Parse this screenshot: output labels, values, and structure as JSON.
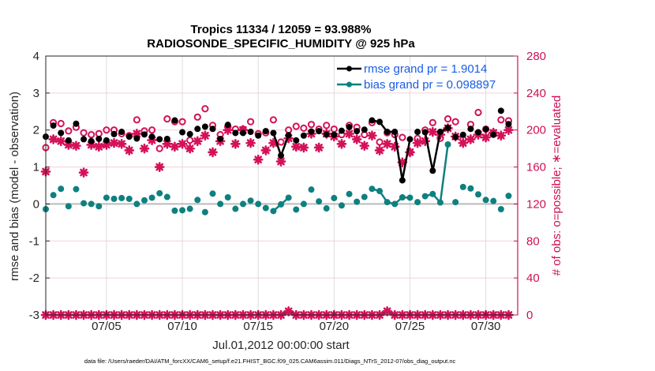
{
  "chart_data": {
    "type": "line",
    "title": "Tropics 11334 / 12059 = 93.988%",
    "subtitle": "RADIOSONDE_SPECIFIC_HUMIDITY @ 925 hPa",
    "xlabel": "Jul.01,2012 00:00:00 start",
    "ylabel_left": "rmse and bias (model - observation)",
    "ylabel_right": "# of obs: o=possible; ∗=evaluated",
    "footnote": "data file: /Users/raeder/DAI/ATM_forcXX/CAM6_setup/f.e21.FHIST_BGC.f09_025.CAM6assim.011/Diags_NTrS_2012-07/obs_diag_output.nc",
    "x_unit": "days since Jul.01,2012 00:00:00",
    "xlim": [
      0,
      31.1
    ],
    "ylim_left": [
      -3,
      4
    ],
    "ylim_right": [
      0,
      280
    ],
    "xticks": [
      {
        "day": 4,
        "label": "07/05"
      },
      {
        "day": 9,
        "label": "07/10"
      },
      {
        "day": 14,
        "label": "07/15"
      },
      {
        "day": 19,
        "label": "07/20"
      },
      {
        "day": 24,
        "label": "07/25"
      },
      {
        "day": 29,
        "label": "07/30"
      }
    ],
    "yticks_left": [
      "-3",
      "-2",
      "-1",
      "0",
      "1",
      "2",
      "3",
      "4"
    ],
    "yticks_right": [
      "0",
      "40",
      "80",
      "120",
      "160",
      "200",
      "240",
      "280"
    ],
    "grid": true,
    "legend_position": "top-right",
    "colors": {
      "rmse": "#000000",
      "bias": "#0e8080",
      "counts": "#d41159",
      "legend_text": "#1a5ce6",
      "zero_line": "#bbbbbb"
    },
    "x_days": [
      0,
      0.5,
      1,
      1.5,
      2,
      2.5,
      3,
      3.5,
      4,
      4.5,
      5,
      5.5,
      6,
      6.5,
      7,
      7.5,
      8,
      8.5,
      9,
      9.5,
      10,
      10.5,
      11,
      11.5,
      12,
      12.5,
      13,
      13.5,
      14,
      14.5,
      15,
      15.5,
      16,
      16.5,
      17,
      17.5,
      18,
      18.5,
      19,
      19.5,
      20,
      20.5,
      21,
      21.5,
      22,
      22.5,
      23,
      23.5,
      24,
      24.5,
      25,
      25.5,
      26,
      26.5,
      27,
      27.5,
      28,
      28.5,
      29,
      29.5,
      30,
      30.5
    ],
    "series": [
      {
        "name": "rmse grand pr = 1.9014",
        "axis": "left",
        "style": "line-dot",
        "values": [
          1.82,
          2.12,
          1.92,
          1.72,
          2.17,
          1.75,
          1.7,
          1.76,
          1.72,
          1.89,
          1.95,
          1.82,
          1.77,
          1.88,
          1.82,
          1.75,
          1.76,
          2.26,
          1.94,
          1.89,
          2.03,
          2.09,
          2.03,
          1.76,
          2.14,
          1.92,
          1.92,
          1.95,
          1.85,
          1.97,
          1.92,
          1.31,
          1.86,
          1.72,
          1.85,
          1.96,
          1.97,
          1.88,
          1.87,
          1.98,
          2.08,
          1.97,
          2.01,
          2.26,
          2.22,
          1.95,
          1.95,
          0.64,
          1.75,
          1.95,
          1.94,
          0.9,
          1.95,
          2.06,
          1.81,
          1.87,
          2.03,
          1.94,
          2.02,
          1.87,
          2.52,
          2.16
        ]
      },
      {
        "name": "bias grand pr = 0.098897",
        "axis": "left",
        "style": "line-dot",
        "values": [
          -0.14,
          0.24,
          0.41,
          -0.06,
          0.4,
          0.02,
          0.0,
          -0.06,
          0.17,
          0.14,
          0.16,
          0.14,
          0.0,
          0.1,
          0.17,
          0.29,
          0.19,
          -0.18,
          -0.17,
          -0.13,
          0.11,
          -0.22,
          0.28,
          0.0,
          0.18,
          -0.13,
          0.0,
          0.09,
          0.0,
          -0.11,
          -0.19,
          -0.01,
          0.17,
          -0.15,
          0.0,
          0.39,
          0.07,
          -0.12,
          0.16,
          -0.04,
          0.27,
          0.06,
          0.19,
          0.41,
          0.35,
          0.05,
          0.0,
          0.18,
          0.17,
          0.05,
          0.21,
          0.27,
          0.04,
          1.61,
          0.05,
          0.46,
          0.42,
          0.26,
          0.11,
          0.08,
          -0.14,
          0.22
        ]
      },
      {
        "name": "possible obs (o)",
        "axis": "right",
        "style": "marker-circle",
        "values": [
          181,
          208,
          207,
          199,
          203,
          197,
          195,
          196,
          200,
          200,
          196,
          194,
          211,
          199,
          200,
          180,
          212,
          209,
          209,
          189,
          214,
          223,
          205,
          195,
          204,
          201,
          201,
          209,
          196,
          197,
          211,
          187,
          200,
          204,
          202,
          206,
          201,
          205,
          201,
          195,
          205,
          203,
          195,
          208,
          187,
          197,
          195,
          192,
          176,
          191,
          200,
          208,
          191,
          212,
          209,
          190,
          206,
          219,
          201,
          197,
          211,
          210
        ]
      },
      {
        "name": "evaluated obs (∗)",
        "axis": "right",
        "style": "marker-star",
        "values": [
          155,
          190,
          188,
          184,
          183,
          154,
          184,
          182,
          184,
          186,
          185,
          178,
          196,
          180,
          189,
          160,
          185,
          182,
          185,
          180,
          188,
          194,
          176,
          188,
          200,
          185,
          200,
          186,
          168,
          178,
          186,
          166,
          191,
          182,
          181,
          196,
          181,
          196,
          193,
          185,
          196,
          190,
          183,
          194,
          178,
          185,
          182,
          165,
          176,
          186,
          188,
          198,
          195,
          202,
          193,
          186,
          190,
          195,
          192,
          197,
          194,
          200
        ]
      },
      {
        "name": "possible obs at zero line",
        "axis": "right",
        "style": "marker-diamond",
        "values": [
          0,
          0,
          0,
          0,
          0,
          0,
          0,
          0,
          0,
          0,
          0,
          0,
          0,
          0,
          0,
          0,
          0,
          0,
          0,
          0,
          0,
          0,
          0,
          0,
          0,
          0,
          0,
          0,
          0,
          0,
          0,
          0,
          4,
          0,
          0,
          0,
          0,
          0,
          0,
          0,
          0,
          0,
          0,
          0,
          0,
          4,
          0,
          0,
          0,
          0,
          0,
          0,
          0,
          0,
          0,
          0,
          0,
          0,
          0,
          0,
          0,
          0
        ]
      }
    ]
  }
}
